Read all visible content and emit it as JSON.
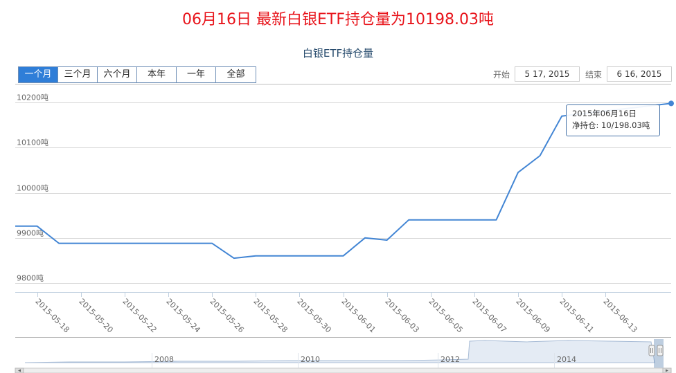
{
  "headline": "06月16日 最新白银ETF持仓量为10198.03吨",
  "range_selector": {
    "buttons": [
      {
        "label": "一个月",
        "active": true
      },
      {
        "label": "三个月",
        "active": false
      },
      {
        "label": "六个月",
        "active": false
      },
      {
        "label": "本年",
        "active": false
      },
      {
        "label": "一年",
        "active": false
      },
      {
        "label": "全部",
        "active": false
      }
    ]
  },
  "date_range": {
    "start_label": "开始",
    "start_value": "5 17, 2015",
    "end_label": "结束",
    "end_value": "6 16, 2015"
  },
  "tooltip": {
    "date": "2015年06月16日",
    "text": "净持仓: 10/198.03吨"
  },
  "colors": {
    "headline": "#e8141b",
    "line": "#4285d4",
    "active_button": "#2f7ed8",
    "grid": "#d8d8d8"
  },
  "chart_data": {
    "type": "line",
    "title": "白银ETF持仓量",
    "xlabel": "",
    "ylabel": "",
    "ylim": [
      9780,
      10240
    ],
    "y_ticks": [
      9800,
      9900,
      10000,
      10100,
      10200
    ],
    "y_tick_labels": [
      "9800吨",
      "9900吨",
      "10000吨",
      "10100吨",
      "10200吨"
    ],
    "xlim": [
      "2015-05-17",
      "2015-06-16"
    ],
    "x_tick_labels": [
      "2015-05-18",
      "2015-05-20",
      "2015-05-22",
      "2015-05-24",
      "2015-05-26",
      "2015-05-28",
      "2015-05-30",
      "2015-06-01",
      "2015-06-03",
      "2015-06-05",
      "2015-06-07",
      "2015-06-09",
      "2015-06-11",
      "2015-06-13"
    ],
    "grid": true,
    "series": [
      {
        "x": [
          "2015-05-17",
          "2015-05-18",
          "2015-05-19",
          "2015-05-26",
          "2015-05-27",
          "2015-05-28",
          "2015-06-01",
          "2015-06-02",
          "2015-06-03",
          "2015-06-04",
          "2015-06-08",
          "2015-06-09",
          "2015-06-10",
          "2015-06-11",
          "2015-06-16"
        ],
        "values": [
          9926,
          9926,
          9888,
          9888,
          9855,
          9860,
          9860,
          9900,
          9895,
          9940,
          9940,
          10045,
          10082,
          10170,
          10198.03
        ]
      }
    ],
    "navigator": {
      "x_tick_labels": [
        "2008",
        "2010",
        "2012",
        "2014"
      ]
    }
  }
}
